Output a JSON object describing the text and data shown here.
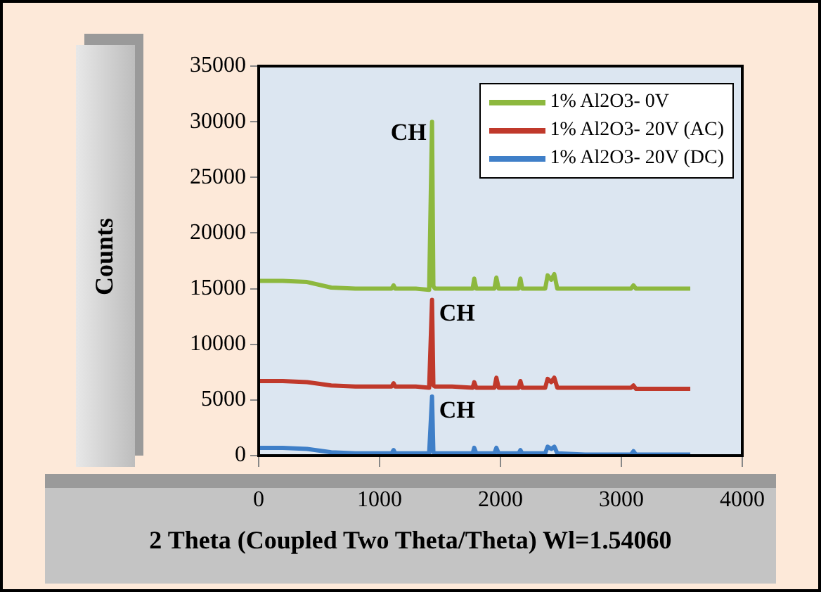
{
  "chart_data": {
    "type": "line",
    "xlabel": "2 Theta (Coupled Two Theta/Theta) Wl=1.54060",
    "ylabel": "Counts",
    "x": [
      0,
      200,
      400,
      600,
      800,
      1000,
      1100,
      1116,
      1130,
      1300,
      1410,
      1434,
      1445,
      1460,
      1600,
      1770,
      1783,
      1800,
      1950,
      1966,
      1985,
      2150,
      2165,
      2180,
      2370,
      2390,
      2420,
      2445,
      2470,
      2700,
      3080,
      3100,
      3120,
      3400,
      3570
    ],
    "series": [
      {
        "name": "1% Al2O3- 0V",
        "color": "#8db83e",
        "values": [
          15700,
          15700,
          15600,
          15100,
          15000,
          15000,
          15000,
          15300,
          15000,
          15000,
          14900,
          30000,
          15200,
          15000,
          15000,
          15000,
          15900,
          15000,
          15000,
          16000,
          15000,
          15000,
          15900,
          15000,
          15000,
          16200,
          15800,
          16300,
          15000,
          15000,
          15000,
          15300,
          15000,
          15000,
          15000
        ]
      },
      {
        "name": "1% Al2O3- 20V (AC)",
        "color": "#c0392b",
        "values": [
          6700,
          6700,
          6600,
          6300,
          6200,
          6200,
          6200,
          6500,
          6200,
          6200,
          6100,
          14000,
          6300,
          6200,
          6200,
          6100,
          6600,
          6100,
          6100,
          7000,
          6100,
          6100,
          6700,
          6100,
          6100,
          6900,
          6600,
          7000,
          6100,
          6100,
          6100,
          6300,
          6000,
          6000,
          6000
        ]
      },
      {
        "name": "1% Al2O3- 20V (DC)",
        "color": "#3f7fc8",
        "values": [
          700,
          700,
          600,
          300,
          200,
          200,
          200,
          500,
          200,
          200,
          200,
          5300,
          300,
          200,
          200,
          200,
          700,
          200,
          200,
          700,
          200,
          200,
          500,
          200,
          200,
          800,
          600,
          800,
          200,
          100,
          100,
          400,
          100,
          100,
          100
        ]
      }
    ],
    "xlim": [
      0,
      4000
    ],
    "xticks": [
      0,
      1000,
      2000,
      3000,
      4000
    ],
    "ylim": [
      0,
      35000
    ],
    "yticks": [
      0,
      5000,
      10000,
      15000,
      20000,
      25000,
      30000,
      35000
    ],
    "grid": false,
    "legend": "top right",
    "marker": "none",
    "line_style": "solid",
    "annotations": [
      "CH",
      "CH",
      "CH"
    ]
  }
}
